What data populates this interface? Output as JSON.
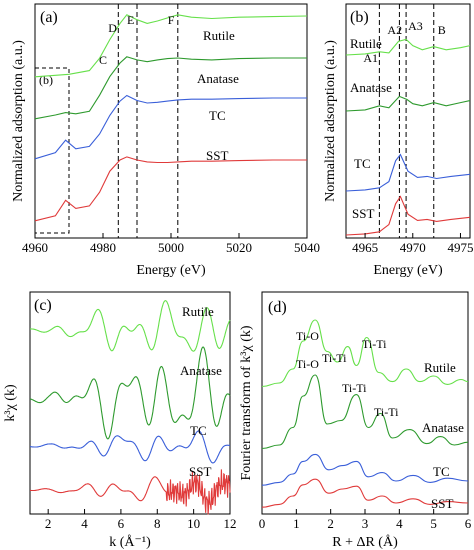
{
  "colors": {
    "Rutile": "#66e04a",
    "Anatase": "#2e9a2e",
    "TC": "#3a5fd9",
    "SST": "#e03a3a"
  },
  "chart_data": [
    {
      "panel": "(a)",
      "type": "line",
      "xlabel": "Energy (eV)",
      "ylabel": "Normalized adsorption (a.u.)",
      "xlim": [
        4960,
        5040
      ],
      "xticks": [
        "4960",
        "4980",
        "5000",
        "5020",
        "5040"
      ],
      "series": [
        {
          "name": "Rutile",
          "x": [
            4960,
            4970,
            4976,
            4979,
            4982,
            4985,
            4987,
            4990,
            4993,
            4996,
            4999,
            5002,
            5006,
            5012,
            5020,
            5030,
            5040
          ],
          "values": [
            0.02,
            0.06,
            0.12,
            0.32,
            0.62,
            0.88,
            1.02,
            0.94,
            0.88,
            0.92,
            0.97,
            1.02,
            0.98,
            0.96,
            0.98,
            0.99,
            1.0
          ]
        },
        {
          "name": "Anatase",
          "x": [
            4960,
            4966,
            4969,
            4972,
            4976,
            4979,
            4982,
            4985,
            4987,
            4990,
            4993,
            4996,
            4999,
            5002,
            5006,
            5012,
            5020,
            5030,
            5040
          ],
          "values": [
            0.02,
            0.08,
            0.12,
            0.1,
            0.14,
            0.4,
            0.7,
            0.92,
            1.02,
            0.97,
            0.94,
            0.97,
            0.99,
            1.0,
            0.98,
            0.97,
            0.99,
            1.0,
            1.0
          ]
        },
        {
          "name": "TC",
          "x": [
            4960,
            4966,
            4969,
            4972,
            4976,
            4979,
            4982,
            4985,
            4987,
            4990,
            4993,
            4996,
            4999,
            5002,
            5006,
            5012,
            5020,
            5030,
            5040
          ],
          "values": [
            0.02,
            0.12,
            0.32,
            0.18,
            0.22,
            0.42,
            0.72,
            0.95,
            1.04,
            0.96,
            0.92,
            0.93,
            0.95,
            0.97,
            0.98,
            0.98,
            0.99,
            1.0,
            1.0
          ]
        },
        {
          "name": "SST",
          "x": [
            4960,
            4966,
            4969,
            4972,
            4976,
            4979,
            4982,
            4985,
            4987,
            4990,
            4993,
            4996,
            4999,
            5002,
            5006,
            5012,
            5020,
            5030,
            5040
          ],
          "values": [
            0.02,
            0.1,
            0.35,
            0.22,
            0.26,
            0.48,
            0.82,
            1.0,
            1.05,
            1.0,
            0.97,
            0.96,
            0.96,
            0.97,
            0.98,
            0.98,
            0.99,
            1.0,
            1.0
          ]
        }
      ],
      "annotations": [
        {
          "text": "C",
          "x": 4980
        },
        {
          "text": "D",
          "x": 4984.5
        },
        {
          "text": "E",
          "x": 4990
        },
        {
          "text": "F",
          "x": 5002
        }
      ],
      "inset_box_label": "(b)"
    },
    {
      "panel": "(b)",
      "type": "line",
      "xlabel": "Energy (eV)",
      "ylabel": "Normalized adsorption (a.u.)",
      "xlim": [
        4963,
        4976
      ],
      "xticks": [
        "4965",
        "4970",
        "4975"
      ],
      "series": [
        {
          "name": "Rutile",
          "x": [
            4963,
            4965,
            4966.5,
            4967.5,
            4968.5,
            4969.3,
            4970,
            4971,
            4972.2,
            4973.5,
            4975,
            4976
          ],
          "values": [
            0.02,
            0.04,
            0.08,
            0.06,
            0.28,
            0.32,
            0.2,
            0.12,
            0.18,
            0.12,
            0.16,
            0.2
          ]
        },
        {
          "name": "Anatase",
          "x": [
            4963,
            4965,
            4966.5,
            4967.5,
            4968.6,
            4969.4,
            4970,
            4971,
            4972.2,
            4973.5,
            4975,
            4976
          ],
          "values": [
            0.02,
            0.04,
            0.12,
            0.08,
            0.3,
            0.24,
            0.16,
            0.12,
            0.18,
            0.12,
            0.18,
            0.22
          ]
        },
        {
          "name": "TC",
          "x": [
            4963,
            4965,
            4966.5,
            4967.5,
            4968.2,
            4968.7,
            4969.5,
            4970.5,
            4971.5,
            4972.5,
            4974,
            4976
          ],
          "values": [
            0.02,
            0.04,
            0.08,
            0.2,
            0.6,
            0.72,
            0.4,
            0.28,
            0.3,
            0.26,
            0.3,
            0.34
          ]
        },
        {
          "name": "SST",
          "x": [
            4963,
            4965,
            4966.5,
            4967.5,
            4968.2,
            4968.7,
            4969.5,
            4970.5,
            4971.5,
            4972.5,
            4974,
            4976
          ],
          "values": [
            0.02,
            0.04,
            0.08,
            0.22,
            0.62,
            0.76,
            0.42,
            0.3,
            0.32,
            0.28,
            0.32,
            0.36
          ]
        }
      ],
      "annotations": [
        {
          "text": "A1",
          "x": 4966.5
        },
        {
          "text": "A2",
          "x": 4968.6
        },
        {
          "text": "A3",
          "x": 4969.3
        },
        {
          "text": "B",
          "x": 4972.2
        }
      ]
    },
    {
      "panel": "(c)",
      "type": "line",
      "xlabel": "k (Å⁻¹)",
      "ylabel": "k³χ (k)",
      "xlim": [
        1,
        12
      ],
      "xticks": [
        "2",
        "4",
        "6",
        "8",
        "10",
        "12"
      ],
      "series": [
        {
          "name": "Rutile"
        },
        {
          "name": "Anatase"
        },
        {
          "name": "TC"
        },
        {
          "name": "SST"
        }
      ]
    },
    {
      "panel": "(d)",
      "type": "line",
      "xlabel": "R + ΔR (Å)",
      "ylabel": "Fourier transform of k³χ (k)",
      "xlim": [
        0,
        6
      ],
      "xticks": [
        "0",
        "1",
        "2",
        "3",
        "4",
        "5",
        "6"
      ],
      "series": [
        {
          "name": "Rutile",
          "x": [
            0,
            0.5,
            0.9,
            1.2,
            1.55,
            1.9,
            2.2,
            2.5,
            2.75,
            3.05,
            3.4,
            3.8,
            4.2,
            4.6,
            5.0,
            5.4,
            5.8,
            6.0
          ],
          "values": [
            0.05,
            0.1,
            0.3,
            0.7,
            1.0,
            0.55,
            0.4,
            0.62,
            0.35,
            0.75,
            0.25,
            0.12,
            0.3,
            0.12,
            0.2,
            0.08,
            0.15,
            0.12
          ]
        },
        {
          "name": "Anatase",
          "x": [
            0,
            0.5,
            0.9,
            1.2,
            1.55,
            1.9,
            2.3,
            2.75,
            3.1,
            3.45,
            3.8,
            4.3,
            4.8,
            5.2,
            5.6,
            6.0
          ],
          "values": [
            0.05,
            0.1,
            0.35,
            0.8,
            1.1,
            0.4,
            0.45,
            0.82,
            0.35,
            0.55,
            0.2,
            0.32,
            0.12,
            0.22,
            0.1,
            0.14
          ]
        },
        {
          "name": "TC",
          "x": [
            0,
            0.5,
            0.9,
            1.2,
            1.55,
            1.95,
            2.35,
            2.75,
            3.1,
            3.5,
            3.9,
            4.4,
            4.9,
            5.4,
            6.0
          ],
          "values": [
            0.04,
            0.08,
            0.2,
            0.38,
            0.48,
            0.26,
            0.32,
            0.38,
            0.16,
            0.22,
            0.1,
            0.18,
            0.08,
            0.14,
            0.1
          ]
        },
        {
          "name": "SST",
          "x": [
            0,
            0.5,
            0.9,
            1.2,
            1.55,
            1.95,
            2.35,
            2.75,
            3.1,
            3.5,
            3.9,
            4.4,
            4.9,
            5.4,
            6.0
          ],
          "values": [
            0.04,
            0.08,
            0.2,
            0.36,
            0.44,
            0.24,
            0.3,
            0.34,
            0.14,
            0.2,
            0.1,
            0.16,
            0.08,
            0.12,
            0.1
          ]
        }
      ],
      "annotations": [
        {
          "text": "Ti-O",
          "series": "Rutile",
          "x": 1.55
        },
        {
          "text": "Ti-Ti",
          "series": "Rutile",
          "x": 2.5
        },
        {
          "text": "Ti-Ti",
          "series": "Rutile",
          "x": 3.05
        },
        {
          "text": "Ti-O",
          "series": "Anatase",
          "x": 1.55
        },
        {
          "text": "Ti-Ti",
          "series": "Anatase",
          "x": 2.75
        },
        {
          "text": "Ti-Ti",
          "series": "Anatase",
          "x": 3.45
        }
      ]
    }
  ]
}
